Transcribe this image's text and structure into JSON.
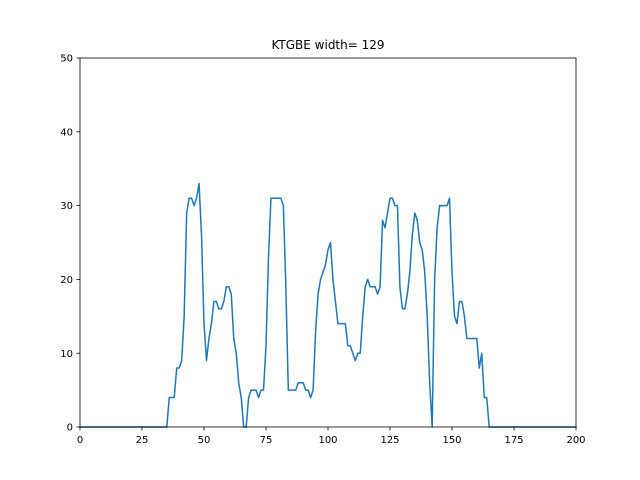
{
  "chart_data": {
    "type": "line",
    "title": "KTGBE width= 129",
    "xlabel": "",
    "ylabel": "",
    "xlim": [
      0,
      200
    ],
    "ylim": [
      0,
      50
    ],
    "xticks": [
      0,
      25,
      50,
      75,
      100,
      125,
      150,
      175,
      200
    ],
    "yticks": [
      0,
      10,
      20,
      30,
      40,
      50
    ],
    "grid": false,
    "series_color": "#1f77b4",
    "series": [
      {
        "x": [
          0,
          35,
          36,
          37,
          38,
          39,
          40,
          41,
          42,
          43,
          44,
          45,
          46,
          47,
          48,
          49,
          50,
          51,
          52,
          53,
          54,
          55,
          56,
          57,
          58,
          59,
          60,
          61,
          62,
          63,
          64,
          65,
          66,
          67,
          68,
          69,
          70,
          71,
          72,
          73,
          74,
          75,
          76,
          77,
          78,
          79,
          80,
          81,
          82,
          83,
          84,
          85,
          86,
          87,
          88,
          89,
          90,
          91,
          92,
          93,
          94,
          95,
          96,
          97,
          98,
          99,
          100,
          101,
          102,
          103,
          104,
          105,
          106,
          107,
          108,
          109,
          110,
          111,
          112,
          113,
          114,
          115,
          116,
          117,
          118,
          119,
          120,
          121,
          122,
          123,
          124,
          125,
          126,
          127,
          128,
          129,
          130,
          131,
          132,
          133,
          134,
          135,
          136,
          137,
          138,
          139,
          140,
          141,
          142,
          143,
          144,
          145,
          146,
          147,
          148,
          149,
          150,
          151,
          152,
          153,
          154,
          155,
          156,
          157,
          158,
          159,
          160,
          161,
          162,
          163,
          164,
          165,
          200
        ],
        "y": [
          0,
          0,
          4,
          4,
          4,
          8,
          8,
          9,
          15,
          29,
          31,
          31,
          30,
          31,
          33,
          26,
          14,
          9,
          12,
          14,
          17,
          17,
          16,
          16,
          17,
          19,
          19,
          18,
          12,
          10,
          6,
          4,
          0,
          0,
          4,
          5,
          5,
          5,
          4,
          5,
          5,
          11,
          23,
          31,
          31,
          31,
          31,
          31,
          30,
          19,
          5,
          5,
          5,
          5,
          6,
          6,
          6,
          5,
          5,
          4,
          5,
          13,
          18,
          20,
          21,
          22,
          24,
          25,
          20,
          17,
          14,
          14,
          14,
          14,
          11,
          11,
          10,
          9,
          10,
          10,
          15,
          19,
          20,
          19,
          19,
          19,
          18,
          19,
          28,
          27,
          29,
          31,
          31,
          30,
          30,
          19,
          16,
          16,
          18,
          21,
          26,
          29,
          28,
          25,
          24,
          21,
          15,
          6,
          0,
          20,
          27,
          30,
          30,
          30,
          30,
          31,
          21,
          15,
          14,
          17,
          17,
          15,
          12,
          12,
          12,
          12,
          12,
          8,
          10,
          4,
          4,
          0,
          0
        ]
      }
    ]
  }
}
